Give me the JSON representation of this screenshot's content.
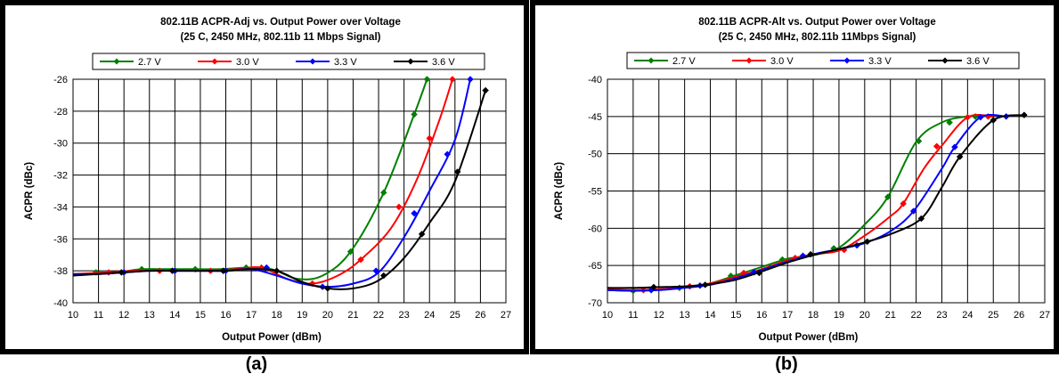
{
  "labels": [
    "(a)",
    "(b)"
  ],
  "colors": {
    "2.7 V": "#008000",
    "3.0 V": "#ff0000",
    "3.3 V": "#0000ff",
    "3.6 V": "#000000"
  },
  "chart_data": [
    {
      "type": "line",
      "title": "802.11B ACPR-Adj vs. Output Power over Voltage",
      "subtitle": "(25 C, 2450 MHz, 802.11b 11 Mbps Signal)",
      "xlabel": "Output Power (dBm)",
      "ylabel": "ACPR (dBc)",
      "xlim": [
        10,
        27
      ],
      "ylim": [
        -40,
        -26
      ],
      "xticks": [
        10,
        11,
        12,
        13,
        14,
        15,
        16,
        17,
        18,
        19,
        20,
        21,
        22,
        23,
        24,
        25,
        26,
        27
      ],
      "yticks": [
        -40,
        -38,
        -36,
        -34,
        -32,
        -30,
        -28,
        -26
      ],
      "grid": true,
      "legend": "top",
      "series": [
        {
          "name": "2.7 V",
          "x": [
            10.9,
            11.7,
            12.7,
            13.8,
            14.8,
            15.8,
            16.8,
            17.8,
            18.8,
            19.8,
            20.9,
            22.2,
            23.4,
            23.9
          ],
          "y": [
            -38.1,
            -38.1,
            -37.9,
            -37.9,
            -37.9,
            -37.9,
            -37.8,
            -37.9,
            -38.5,
            -38.3,
            -36.8,
            -33.1,
            -28.2,
            -26.0
          ]
        },
        {
          "name": "3.0 V",
          "x": [
            10.0,
            11.4,
            12.4,
            13.4,
            14.4,
            15.4,
            16.4,
            17.4,
            18.4,
            19.4,
            20.4,
            21.3,
            22.5,
            23.5,
            24.4,
            24.9
          ],
          "y": [
            -38.2,
            -38.1,
            -38.0,
            -38.0,
            -38.0,
            -38.0,
            -37.9,
            -37.8,
            -38.5,
            -38.8,
            -38.3,
            -37.3,
            -35.3,
            -32.3,
            -28.5,
            -26.0
          ]
        },
        {
          "name": "3.3 V",
          "x": [
            10.0,
            11.0,
            12.0,
            13.0,
            14.0,
            15.0,
            16.0,
            17.0,
            18.0,
            19.0,
            20.0,
            21.0,
            22.0,
            23.0,
            24.0,
            25.0,
            25.6
          ],
          "y": [
            -38.2,
            -38.2,
            -38.1,
            -38.0,
            -38.0,
            -38.0,
            -38.0,
            -37.9,
            -38.3,
            -38.8,
            -39.0,
            -38.8,
            -38.1,
            -35.9,
            -33.0,
            -29.8,
            -26.0
          ]
        },
        {
          "name": "3.6 V",
          "x": [
            10.0,
            11.0,
            12.0,
            13.0,
            14.0,
            15.0,
            16.0,
            17.0,
            18.0,
            19.0,
            20.0,
            21.0,
            22.0,
            23.0,
            24.0,
            25.0,
            26.2
          ],
          "y": [
            -38.3,
            -38.2,
            -38.1,
            -38.0,
            -38.0,
            -38.0,
            -38.0,
            -37.9,
            -38.0,
            -38.7,
            -39.1,
            -39.1,
            -38.6,
            -37.2,
            -35.0,
            -32.4,
            -26.7
          ]
        }
      ],
      "markers": {
        "2.7 V": [
          [
            10.9,
            -38.1
          ],
          [
            12.7,
            -37.9
          ],
          [
            14.8,
            -37.9
          ],
          [
            16.8,
            -37.8
          ],
          [
            20.9,
            -36.8
          ],
          [
            22.2,
            -33.1
          ],
          [
            23.4,
            -28.2
          ],
          [
            23.9,
            -26.0
          ]
        ],
        "3.0 V": [
          [
            11.4,
            -38.1
          ],
          [
            13.4,
            -38.0
          ],
          [
            15.4,
            -38.0
          ],
          [
            17.4,
            -37.8
          ],
          [
            19.4,
            -38.8
          ],
          [
            21.3,
            -37.3
          ],
          [
            22.8,
            -34.0
          ],
          [
            24.0,
            -29.7
          ],
          [
            24.9,
            -26.0
          ]
        ],
        "3.3 V": [
          [
            12.0,
            -38.1
          ],
          [
            14.0,
            -38.0
          ],
          [
            16.0,
            -38.0
          ],
          [
            17.6,
            -37.8
          ],
          [
            19.8,
            -39.0
          ],
          [
            21.9,
            -38.0
          ],
          [
            23.4,
            -34.4
          ],
          [
            24.7,
            -30.7
          ],
          [
            25.6,
            -26.0
          ]
        ],
        "3.6 V": [
          [
            11.9,
            -38.1
          ],
          [
            13.9,
            -38.0
          ],
          [
            15.9,
            -38.0
          ],
          [
            18.0,
            -38.0
          ],
          [
            20.0,
            -39.1
          ],
          [
            22.2,
            -38.3
          ],
          [
            23.7,
            -35.7
          ],
          [
            25.1,
            -31.8
          ],
          [
            26.2,
            -26.7
          ]
        ]
      }
    },
    {
      "type": "line",
      "title": "802.11B ACPR-Alt vs. Output Power over Voltage",
      "subtitle": "(25 C, 2450 MHz, 802.11b 11Mbps Signal)",
      "xlabel": "Output Power (dBm)",
      "ylabel": "ACPR (dBc)",
      "xlim": [
        10,
        27
      ],
      "ylim": [
        -70,
        -40
      ],
      "xticks": [
        10,
        11,
        12,
        13,
        14,
        15,
        16,
        17,
        18,
        19,
        20,
        21,
        22,
        23,
        24,
        25,
        26,
        27
      ],
      "yticks": [
        -70,
        -65,
        -60,
        -55,
        -50,
        -45,
        -40
      ],
      "grid": true,
      "legend": "top",
      "series": [
        {
          "name": "2.7 V",
          "x": [
            10.0,
            11.0,
            12.0,
            13.0,
            14.0,
            15.0,
            16.0,
            17.0,
            18.0,
            19.0,
            20.0,
            20.9,
            22.0,
            23.0,
            24.0,
            25.0
          ],
          "y": [
            -68.3,
            -68.4,
            -68.2,
            -67.9,
            -67.4,
            -66.3,
            -65.2,
            -64.1,
            -63.6,
            -62.6,
            -59.5,
            -55.8,
            -48.4,
            -45.8,
            -45.0,
            -45.0
          ]
        },
        {
          "name": "3.0 V",
          "x": [
            10.0,
            11.0,
            12.0,
            13.0,
            14.0,
            15.0,
            16.0,
            17.0,
            18.0,
            19.0,
            20.0,
            21.0,
            21.5,
            22.3,
            23.0,
            24.0,
            25.0
          ],
          "y": [
            -68.2,
            -68.3,
            -68.2,
            -67.9,
            -67.4,
            -66.5,
            -65.5,
            -64.3,
            -63.5,
            -63.0,
            -61.0,
            -58.4,
            -56.7,
            -52.0,
            -48.9,
            -45.1,
            -45.0
          ]
        },
        {
          "name": "3.3 V",
          "x": [
            10.0,
            11.0,
            12.0,
            13.0,
            14.0,
            15.0,
            16.0,
            17.0,
            18.0,
            19.0,
            20.0,
            21.0,
            21.9,
            23.0,
            23.5,
            24.5,
            25.5
          ],
          "y": [
            -68.3,
            -68.4,
            -68.3,
            -68.0,
            -67.6,
            -66.7,
            -65.6,
            -64.5,
            -63.5,
            -62.8,
            -62.0,
            -60.4,
            -57.7,
            -52.0,
            -49.1,
            -45.1,
            -45.0
          ]
        },
        {
          "name": "3.6 V",
          "x": [
            10.0,
            11.0,
            12.0,
            13.0,
            14.0,
            15.0,
            16.0,
            17.0,
            18.0,
            19.0,
            20.0,
            21.0,
            22.2,
            23.0,
            23.7,
            25.0,
            26.2
          ],
          "y": [
            -68.0,
            -68.0,
            -67.9,
            -67.8,
            -67.5,
            -66.9,
            -65.8,
            -64.6,
            -63.6,
            -62.8,
            -61.9,
            -60.8,
            -58.7,
            -54.5,
            -50.4,
            -45.5,
            -44.8
          ]
        }
      ],
      "markers": {
        "2.7 V": [
          [
            11.0,
            -68.4
          ],
          [
            12.8,
            -68.0
          ],
          [
            14.8,
            -66.4
          ],
          [
            16.8,
            -64.2
          ],
          [
            18.8,
            -62.7
          ],
          [
            20.9,
            -55.8
          ],
          [
            22.1,
            -48.3
          ],
          [
            23.3,
            -45.8
          ],
          [
            24.3,
            -45.0
          ]
        ],
        "3.0 V": [
          [
            11.4,
            -68.3
          ],
          [
            13.2,
            -67.8
          ],
          [
            15.3,
            -66.0
          ],
          [
            17.3,
            -64.0
          ],
          [
            19.2,
            -62.9
          ],
          [
            21.5,
            -56.7
          ],
          [
            22.8,
            -49.0
          ],
          [
            24.0,
            -45.1
          ],
          [
            24.8,
            -45.0
          ]
        ],
        "3.3 V": [
          [
            11.7,
            -68.3
          ],
          [
            13.6,
            -67.7
          ],
          [
            15.7,
            -65.9
          ],
          [
            17.6,
            -63.7
          ],
          [
            19.7,
            -62.3
          ],
          [
            21.9,
            -57.7
          ],
          [
            23.5,
            -49.1
          ],
          [
            24.5,
            -45.1
          ],
          [
            25.5,
            -45.0
          ]
        ],
        "3.6 V": [
          [
            11.8,
            -67.9
          ],
          [
            13.8,
            -67.6
          ],
          [
            15.9,
            -66.0
          ],
          [
            17.9,
            -63.5
          ],
          [
            20.1,
            -61.8
          ],
          [
            22.2,
            -58.7
          ],
          [
            23.7,
            -50.4
          ],
          [
            25.0,
            -45.5
          ],
          [
            26.2,
            -44.8
          ]
        ]
      }
    }
  ]
}
